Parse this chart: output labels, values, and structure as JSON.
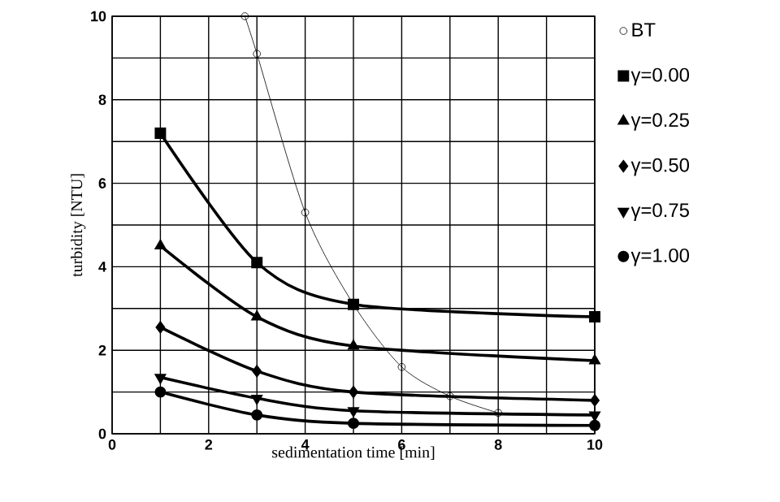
{
  "chart_data": {
    "type": "line",
    "xlabel": "sedimentation time  [min]",
    "ylabel": "turbidity  [NTU]",
    "xlim": [
      0,
      10
    ],
    "ylim": [
      0,
      10
    ],
    "xticks": [
      0,
      2,
      4,
      6,
      8,
      10
    ],
    "yticks": [
      0,
      2,
      4,
      6,
      8,
      10
    ],
    "grid": true,
    "legend": "right",
    "series": [
      {
        "name": "BT",
        "color": "#000000",
        "marker": "circle",
        "x": [
          2.75,
          3,
          4,
          5,
          6,
          7,
          8
        ],
        "values": [
          10,
          9.1,
          5.3,
          3.1,
          1.6,
          0.9,
          0.5
        ]
      },
      {
        "name": "γ=0.00",
        "color": "#000000",
        "marker": "square",
        "x": [
          1,
          3,
          5,
          10
        ],
        "values": [
          7.2,
          4.1,
          3.1,
          2.8
        ]
      },
      {
        "name": "γ=0.25",
        "color": "#000000",
        "marker": "triangle",
        "x": [
          1,
          3,
          5,
          10
        ],
        "values": [
          4.5,
          2.8,
          2.1,
          1.75
        ]
      },
      {
        "name": "γ=0.50",
        "color": "#000000",
        "marker": "diamond",
        "x": [
          1,
          3,
          5,
          10
        ],
        "values": [
          2.55,
          1.5,
          1.0,
          0.8
        ]
      },
      {
        "name": "γ=0.75",
        "color": "#000000",
        "marker": "triangle down",
        "x": [
          1,
          3,
          5,
          10
        ],
        "values": [
          1.35,
          0.85,
          0.55,
          0.45
        ]
      },
      {
        "name": "γ=1.00",
        "color": "#000000",
        "marker": "circle filled",
        "x": [
          1,
          3,
          5,
          10
        ],
        "values": [
          1.0,
          0.45,
          0.25,
          0.2
        ]
      }
    ]
  }
}
